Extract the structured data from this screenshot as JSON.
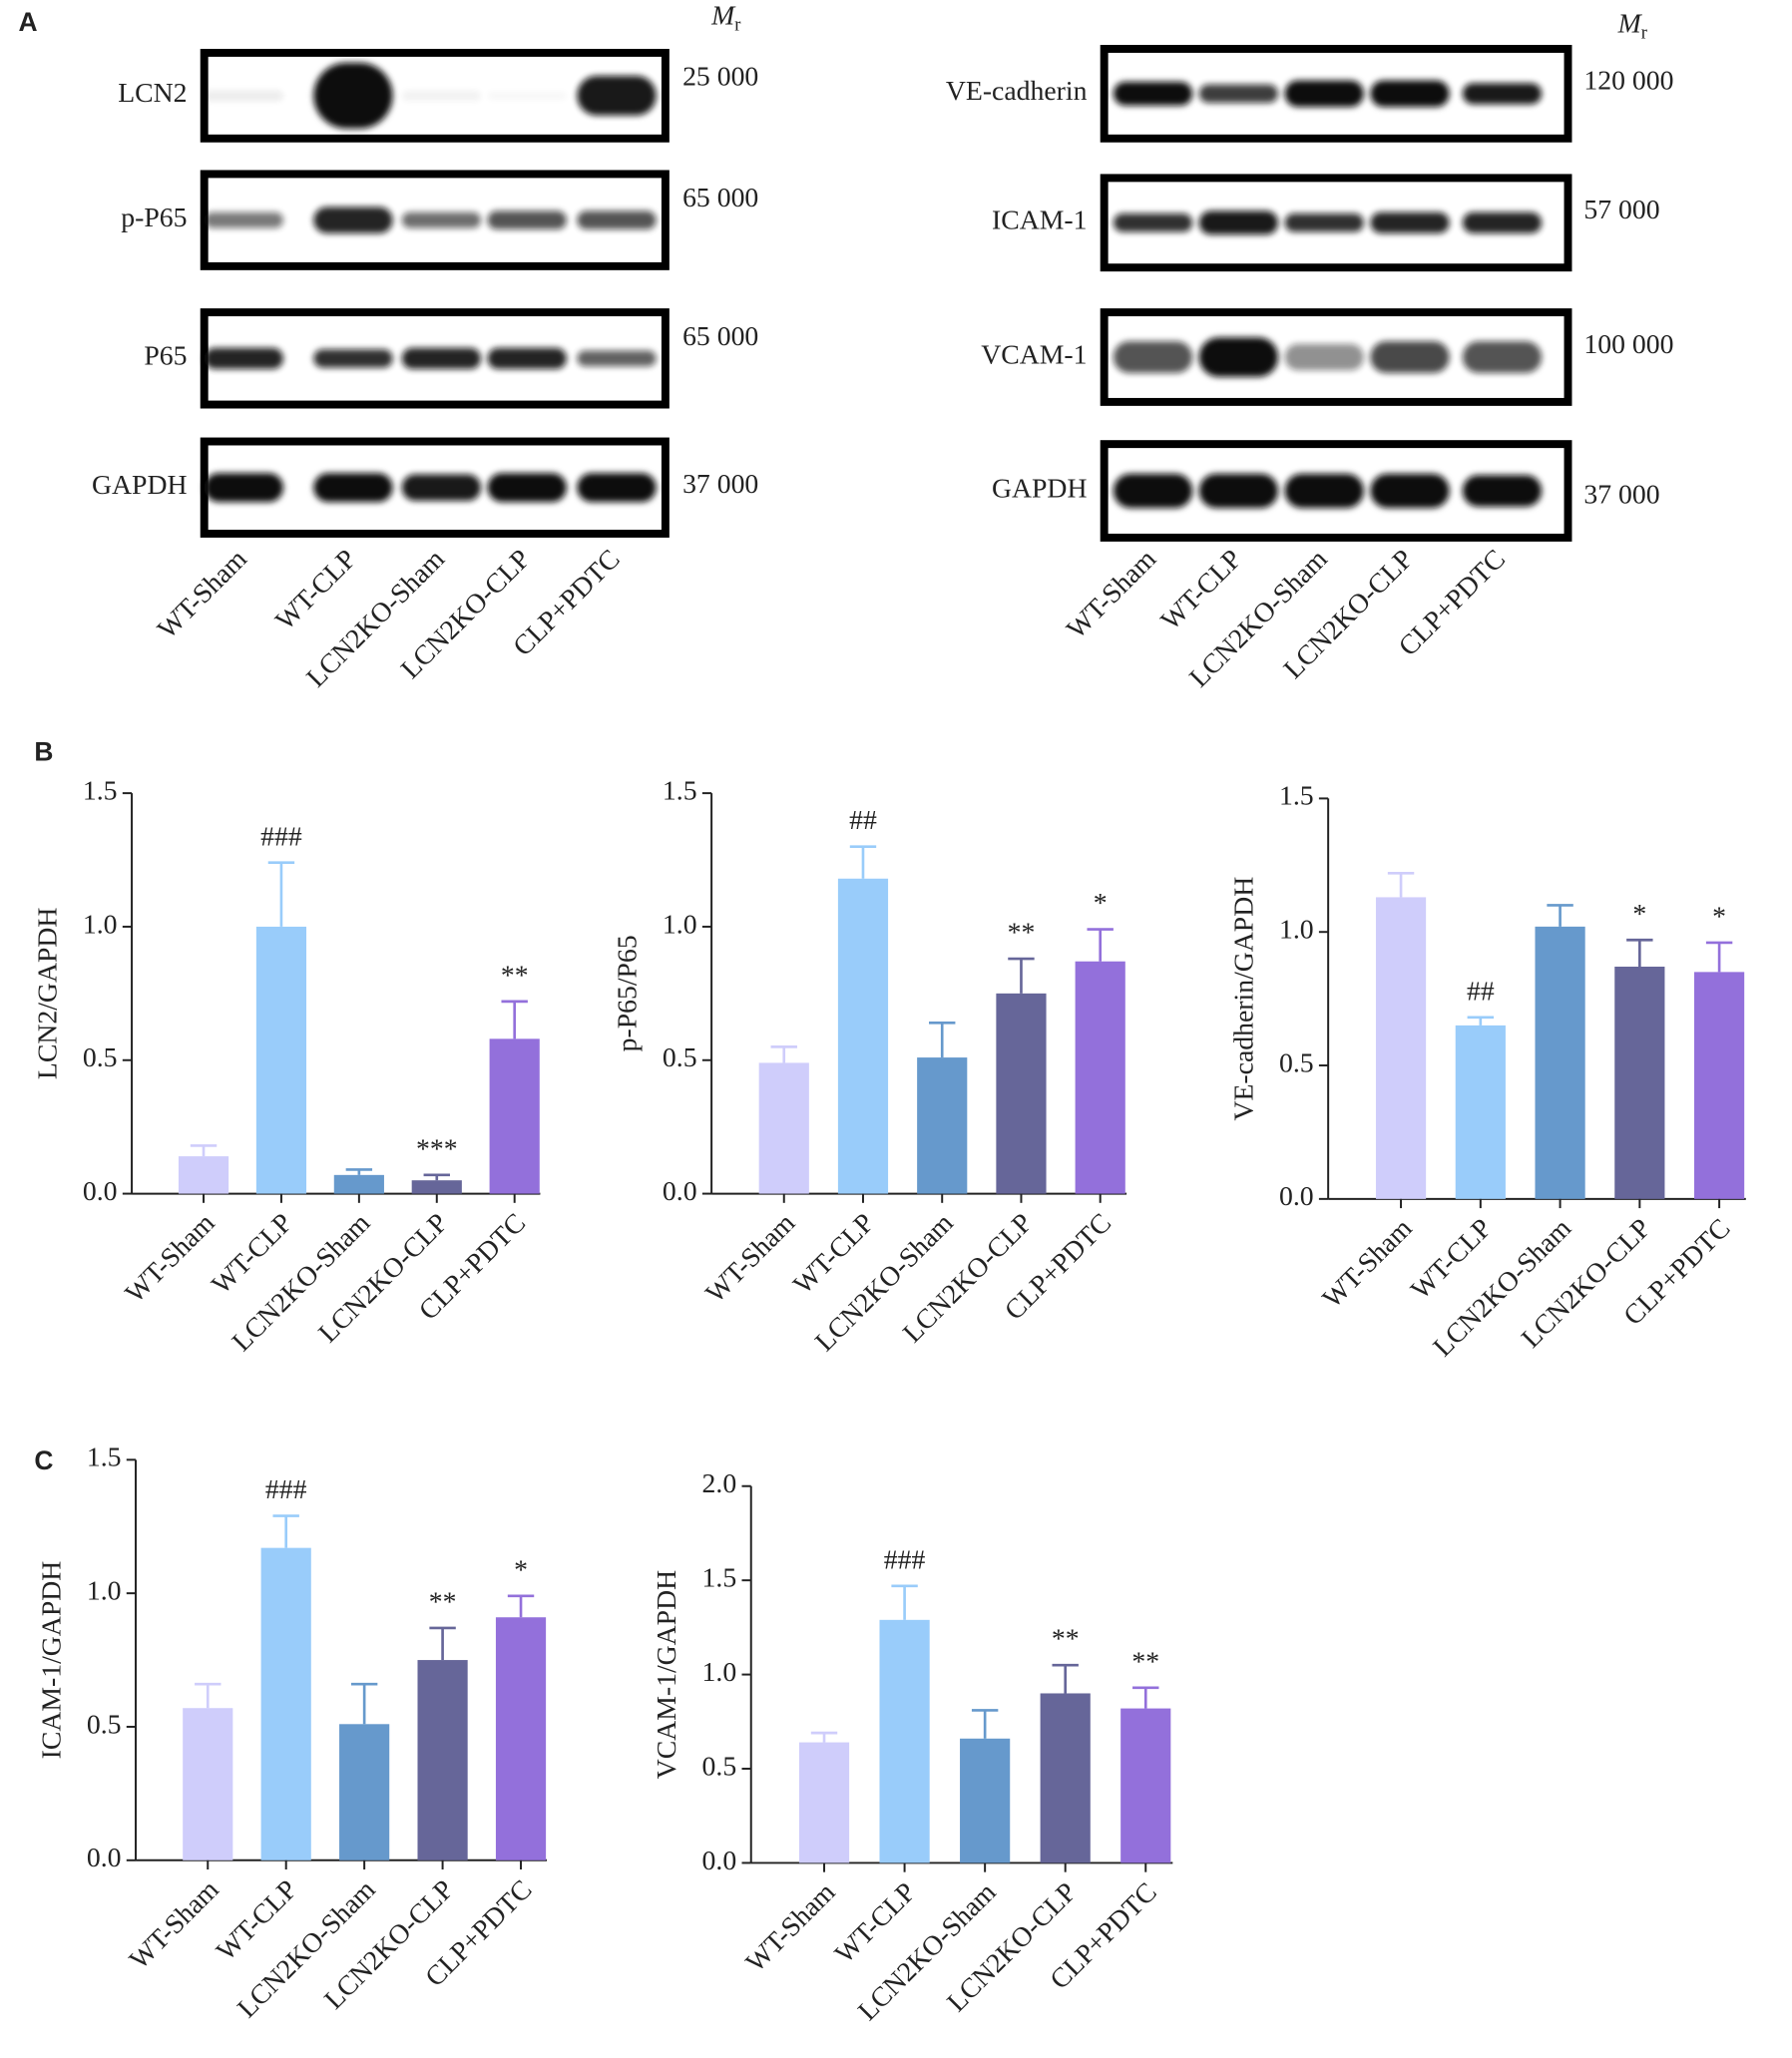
{
  "figure": {
    "panel_labels": [
      "A",
      "B",
      "C"
    ]
  },
  "blots": [
    {
      "rows": [
        {
          "label": "LCN2",
          "mr": "25 000"
        },
        {
          "label": "p-P65",
          "mr": "65 000"
        },
        {
          "label": "P65",
          "mr": "65 000"
        },
        {
          "label": "GAPDH",
          "mr": "37 000"
        }
      ],
      "lanes": [
        "WT-Sham",
        "WT-CLP",
        "LCN2KO-Sham",
        "LCN2KO-CLP",
        "CLP+PDTC"
      ],
      "mr_symbol": "M",
      "mr_subscript": "r"
    },
    {
      "rows": [
        {
          "label": "VE-cadherin",
          "mr": "120 000"
        },
        {
          "label": "ICAM-1",
          "mr": "57 000"
        },
        {
          "label": "VCAM-1",
          "mr": "100 000"
        },
        {
          "label": "GAPDH",
          "mr": "37 000"
        }
      ],
      "lanes": [
        "WT-Sham",
        "WT-CLP",
        "LCN2KO-Sham",
        "LCN2KO-CLP",
        "CLP+PDTC"
      ],
      "mr_symbol": "M",
      "mr_subscript": "r"
    }
  ],
  "chart_data": [
    {
      "type": "bar",
      "ylabel": "LCN2/GAPDH",
      "categories": [
        "WT-Sham",
        "WT-CLP",
        "LCN2KO-Sham",
        "LCN2KO-CLP",
        "CLP+PDTC"
      ],
      "values": [
        0.14,
        1.0,
        0.07,
        0.05,
        0.58
      ],
      "errors": [
        0.04,
        0.24,
        0.02,
        0.02,
        0.14
      ],
      "annotations": [
        null,
        "###",
        null,
        "***",
        "**"
      ],
      "colors": [
        "#cfcdfb",
        "#99ccfa",
        "#6699cc",
        "#666699",
        "#9370db"
      ],
      "ylim": [
        0,
        1.5
      ],
      "yticks": [
        {
          "value": 0,
          "label": "0.0"
        },
        0.5,
        {
          "value": 1,
          "label": "1.0"
        },
        1.5
      ]
    },
    {
      "type": "bar",
      "ylabel": "p-P65/P65",
      "categories": [
        "WT-Sham",
        "WT-CLP",
        "LCN2KO-Sham",
        "LCN2KO-CLP",
        "CLP+PDTC"
      ],
      "values": [
        0.49,
        1.18,
        0.51,
        0.75,
        0.87
      ],
      "errors": [
        0.06,
        0.12,
        0.13,
        0.13,
        0.12
      ],
      "annotations": [
        null,
        "##",
        null,
        "**",
        "*"
      ],
      "colors": [
        "#cfcdfb",
        "#99ccfa",
        "#6699cc",
        "#666699",
        "#9370db"
      ],
      "ylim": [
        0,
        1.5
      ],
      "yticks": [
        {
          "value": 0,
          "label": "0.0"
        },
        0.5,
        {
          "value": 1,
          "label": "1.0"
        },
        1.5
      ]
    },
    {
      "type": "bar",
      "ylabel": "VE-cadherin/GAPDH",
      "categories": [
        "WT-Sham",
        "WT-CLP",
        "LCN2KO-Sham",
        "LCN2KO-CLP",
        "CLP+PDTC"
      ],
      "values": [
        1.13,
        0.65,
        1.02,
        0.87,
        0.85
      ],
      "errors": [
        0.09,
        0.03,
        0.08,
        0.1,
        0.11
      ],
      "annotations": [
        null,
        "##",
        null,
        "*",
        "*"
      ],
      "colors": [
        "#cfcdfb",
        "#99ccfa",
        "#6699cc",
        "#666699",
        "#9370db"
      ],
      "ylim": [
        0,
        1.5
      ],
      "yticks": [
        {
          "value": 0,
          "label": "0.0"
        },
        0.5,
        {
          "value": 1,
          "label": "1.0"
        },
        1.5
      ]
    },
    {
      "type": "bar",
      "ylabel": "ICAM-1/GAPDH",
      "categories": [
        "WT-Sham",
        "WT-CLP",
        "LCN2KO-Sham",
        "LCN2KO-CLP",
        "CLP+PDTC"
      ],
      "values": [
        0.57,
        1.17,
        0.51,
        0.75,
        0.91
      ],
      "errors": [
        0.09,
        0.12,
        0.15,
        0.12,
        0.08
      ],
      "annotations": [
        null,
        "###",
        null,
        "**",
        "*"
      ],
      "colors": [
        "#cfcdfb",
        "#99ccfa",
        "#6699cc",
        "#666699",
        "#9370db"
      ],
      "ylim": [
        0,
        1.5
      ],
      "yticks": [
        {
          "value": 0,
          "label": "0.0"
        },
        0.5,
        {
          "value": 1,
          "label": "1.0"
        },
        1.5
      ]
    },
    {
      "type": "bar",
      "ylabel": "VCAM-1/GAPDH",
      "categories": [
        "WT-Sham",
        "WT-CLP",
        "LCN2KO-Sham",
        "LCN2KO-CLP",
        "CLP+PDTC"
      ],
      "values": [
        0.64,
        1.29,
        0.66,
        0.9,
        0.82
      ],
      "errors": [
        0.05,
        0.18,
        0.15,
        0.15,
        0.11
      ],
      "annotations": [
        null,
        "###",
        null,
        "**",
        "**"
      ],
      "colors": [
        "#cfcdfb",
        "#99ccfa",
        "#6699cc",
        "#666699",
        "#9370db"
      ],
      "ylim": [
        0,
        2
      ],
      "yticks": [
        {
          "value": 0,
          "label": "0.0"
        },
        0.5,
        {
          "value": 1,
          "label": "1.0"
        },
        1.5,
        {
          "value": 2,
          "label": "2.0"
        }
      ]
    }
  ]
}
